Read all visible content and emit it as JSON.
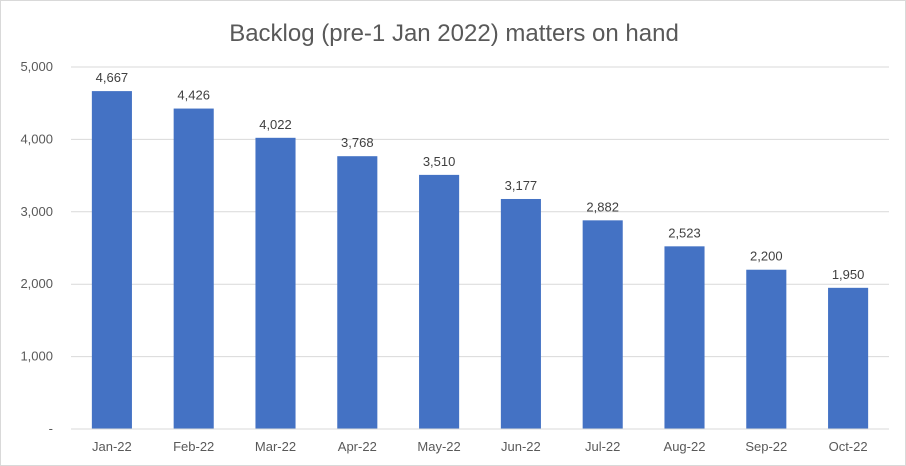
{
  "chart_data": {
    "type": "bar",
    "title": "Backlog (pre-1 Jan 2022) matters on hand",
    "categories": [
      "Jan-22",
      "Feb-22",
      "Mar-22",
      "Apr-22",
      "May-22",
      "Jun-22",
      "Jul-22",
      "Aug-22",
      "Sep-22",
      "Oct-22"
    ],
    "values": [
      4667,
      4426,
      4022,
      3768,
      3510,
      3177,
      2882,
      2523,
      2200,
      1950
    ],
    "data_labels": [
      "4,667",
      "4,426",
      "4,022",
      "3,768",
      "3,510",
      "3,177",
      "2,882",
      "2,523",
      "2,200",
      "1,950"
    ],
    "y_ticks": [
      0,
      1000,
      2000,
      3000,
      4000,
      5000
    ],
    "y_tick_labels": [
      "-",
      "1,000",
      "2,000",
      "3,000",
      "4,000",
      "5,000"
    ],
    "ylim": [
      0,
      5000
    ],
    "xlabel": "",
    "ylabel": "",
    "grid": true,
    "legend": "none",
    "bar_color": "#4472c4"
  }
}
